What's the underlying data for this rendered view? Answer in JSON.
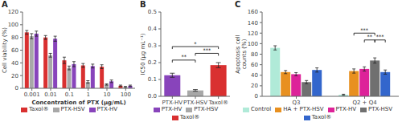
{
  "chart_data": [
    {
      "type": "bar",
      "title": "A",
      "xlabel": "Concentration of PTX (μg/mL)",
      "ylabel": "Cell viability (%)",
      "categories": [
        "0.001",
        "0.01",
        "0.1",
        "1",
        "10",
        "100"
      ],
      "series": [
        {
          "name": "Taxol®",
          "color": "#d93030",
          "values": [
            88,
            80,
            44,
            36,
            34,
            4
          ],
          "errors": [
            3,
            3,
            5,
            3,
            3,
            1
          ]
        },
        {
          "name": "PTX-HSV",
          "color": "#a8a8a8",
          "values": [
            82,
            52,
            32,
            10,
            6,
            2
          ],
          "errors": [
            4,
            3,
            3,
            2,
            1,
            1
          ]
        },
        {
          "name": "PTX-HV",
          "color": "#8844bb",
          "values": [
            86,
            78,
            38,
            35,
            11,
            4
          ],
          "errors": [
            4,
            4,
            4,
            3,
            2,
            1
          ]
        }
      ],
      "ylim": [
        0,
        120
      ],
      "yticks": [
        0,
        20,
        40,
        60,
        80,
        100,
        120
      ],
      "legend": "bottom"
    },
    {
      "type": "bar",
      "title": "B",
      "ylabel": "IC50 (μg mL⁻¹)",
      "categories": [
        "PTX-HV",
        "PTX-HSV",
        "Taxol®"
      ],
      "values": [
        0.125,
        0.035,
        0.185
      ],
      "errors": [
        0.012,
        0.005,
        0.015
      ],
      "colors": [
        "#8844bb",
        "#a8a8a8",
        "#d93030"
      ],
      "ylim": [
        0,
        0.5
      ],
      "yticks": [
        {
          "value": 0,
          "label": "0.0"
        },
        0.1,
        0.2,
        0.3,
        0.4,
        0.5
      ],
      "legend": "bottom",
      "annotations": [
        {
          "from": "PTX-HV",
          "to": "PTX-HSV",
          "y": 0.215,
          "label": "**"
        },
        {
          "from": "PTX-HV",
          "to": "Taxol®",
          "y": 0.295,
          "label": "*"
        },
        {
          "from": "PTX-HSV",
          "to": "Taxol®",
          "y": 0.255,
          "label": "***"
        }
      ]
    },
    {
      "type": "bar",
      "title": "C",
      "ylabel": "Apoptosis cell\ncounts (%)",
      "categories": [
        "Q3",
        "Q2 + Q4"
      ],
      "series": [
        {
          "name": "Control",
          "color": "#b0ead8",
          "values": [
            92,
            3
          ],
          "errors": [
            4,
            1
          ]
        },
        {
          "name": "HA + PTX-HSV",
          "color": "#e89020",
          "values": [
            46,
            48
          ],
          "errors": [
            3,
            4
          ]
        },
        {
          "name": "PTX-HV",
          "color": "#dd2299",
          "values": [
            42,
            52
          ],
          "errors": [
            3,
            4
          ]
        },
        {
          "name": "PTX-HSV",
          "color": "#707070",
          "values": [
            27,
            68
          ],
          "errors": [
            3,
            5
          ]
        },
        {
          "name": "Taxol®",
          "color": "#3366cc",
          "values": [
            50,
            46
          ],
          "errors": [
            4,
            4
          ]
        }
      ],
      "ylim": [
        0,
        160
      ],
      "yticks": [
        0,
        20,
        40,
        60,
        80,
        100,
        120,
        140,
        160
      ],
      "legend": "bottom",
      "annotations": [
        {
          "category": "Q2 + Q4",
          "from": "PTX-HV",
          "to": "PTX-HSV",
          "y": 107,
          "label": "**"
        },
        {
          "category": "Q2 + Q4",
          "from": "HA + PTX-HSV",
          "to": "PTX-HSV",
          "y": 120,
          "label": "***"
        },
        {
          "category": "Q2 + Q4",
          "from": "PTX-HSV",
          "to": "Taxol®",
          "y": 107,
          "label": "***"
        }
      ]
    }
  ]
}
